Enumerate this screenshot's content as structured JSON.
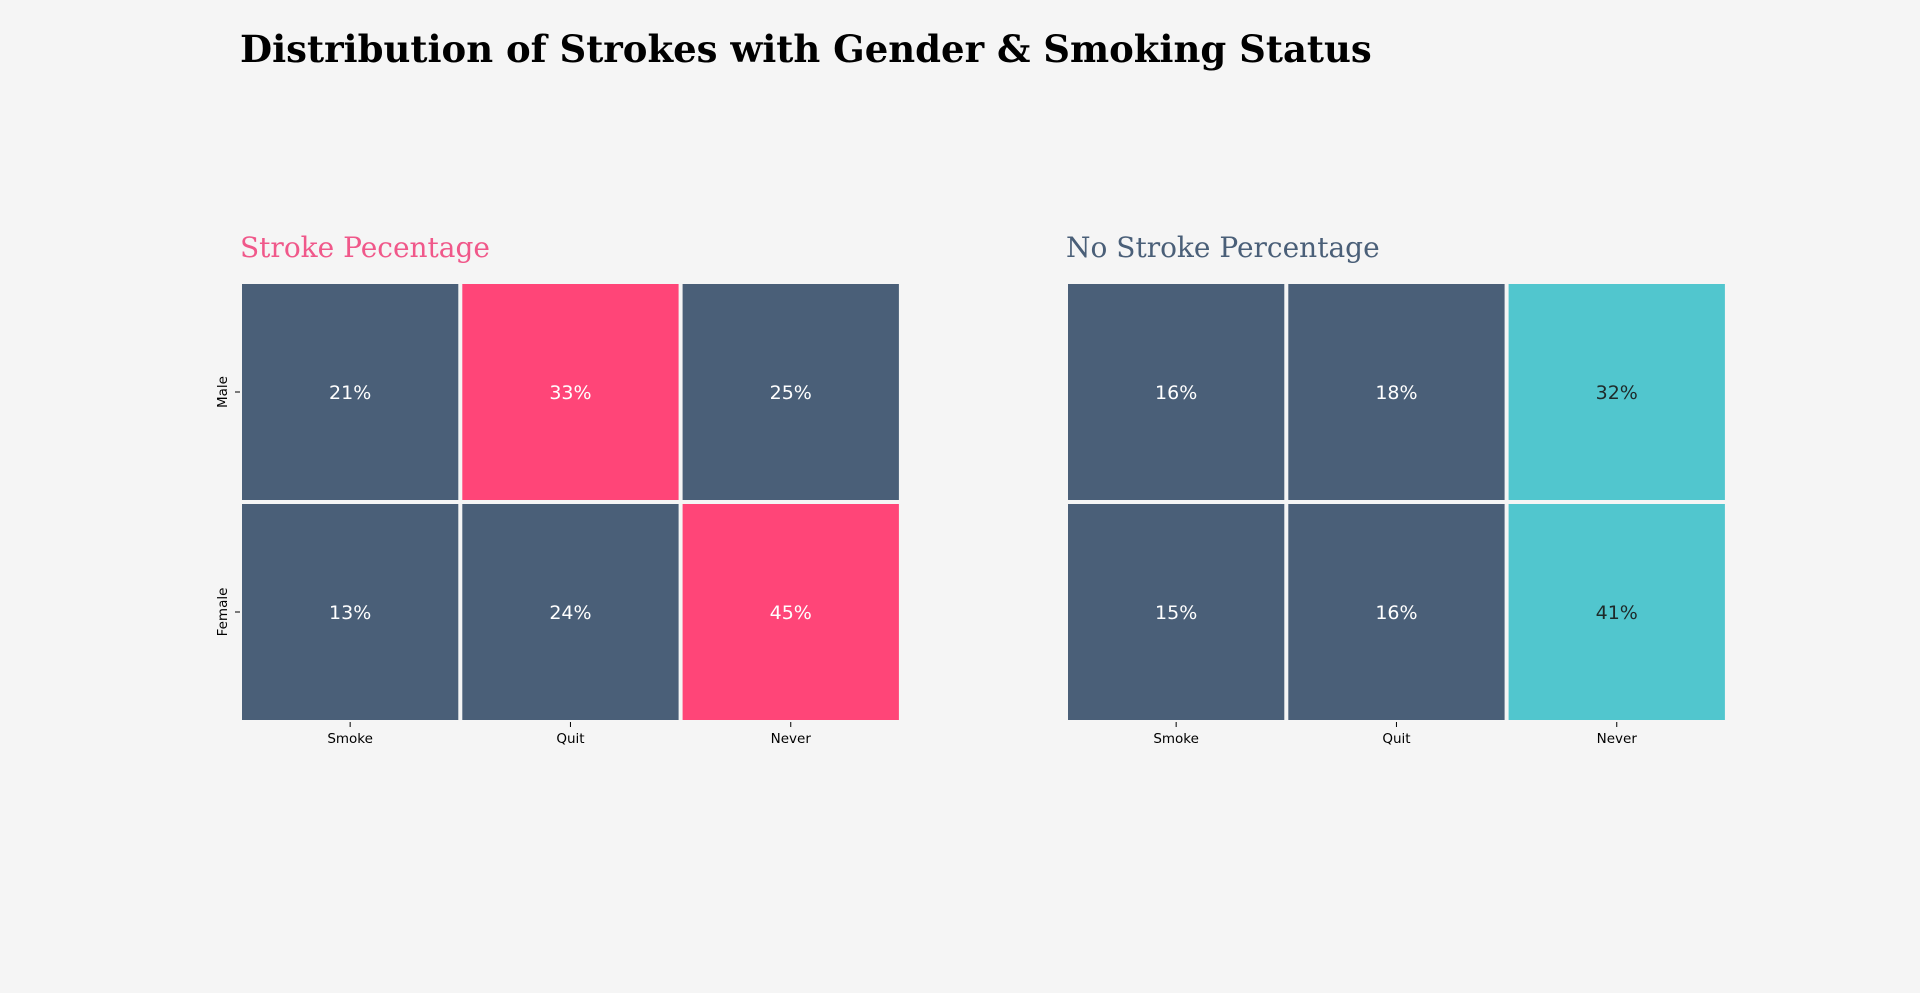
{
  "title": "Distribution of Strokes with Gender & Smoking Status",
  "colors": {
    "background": "#f5f5f5",
    "base": "#4a5f78",
    "stroke_accent": "#ff4578",
    "nostroke_accent": "#51c6ce",
    "stroke_title": "#f0588a",
    "nostroke_title": "#4a5f78"
  },
  "chart_data": [
    {
      "type": "heatmap",
      "title": "Stroke Pecentage",
      "x_categories": [
        "Smoke",
        "Quit",
        "Never"
      ],
      "y_categories": [
        "Male",
        "Female"
      ],
      "values": [
        [
          21,
          33,
          25
        ],
        [
          13,
          24,
          45
        ]
      ],
      "labels": [
        [
          "21%",
          "33%",
          "25%"
        ],
        [
          "13%",
          "24%",
          "45%"
        ]
      ],
      "show_y_labels": true,
      "accent": "stroke_accent",
      "title_color": "stroke_title",
      "highlight_light_text": true
    },
    {
      "type": "heatmap",
      "title": "No Stroke Percentage",
      "x_categories": [
        "Smoke",
        "Quit",
        "Never"
      ],
      "y_categories": [
        "Male",
        "Female"
      ],
      "values": [
        [
          16,
          18,
          32
        ],
        [
          15,
          16,
          41
        ]
      ],
      "labels": [
        [
          "16%",
          "18%",
          "32%"
        ],
        [
          "15%",
          "16%",
          "41%"
        ]
      ],
      "show_y_labels": false,
      "accent": "nostroke_accent",
      "title_color": "nostroke_title",
      "highlight_light_text": false
    }
  ]
}
